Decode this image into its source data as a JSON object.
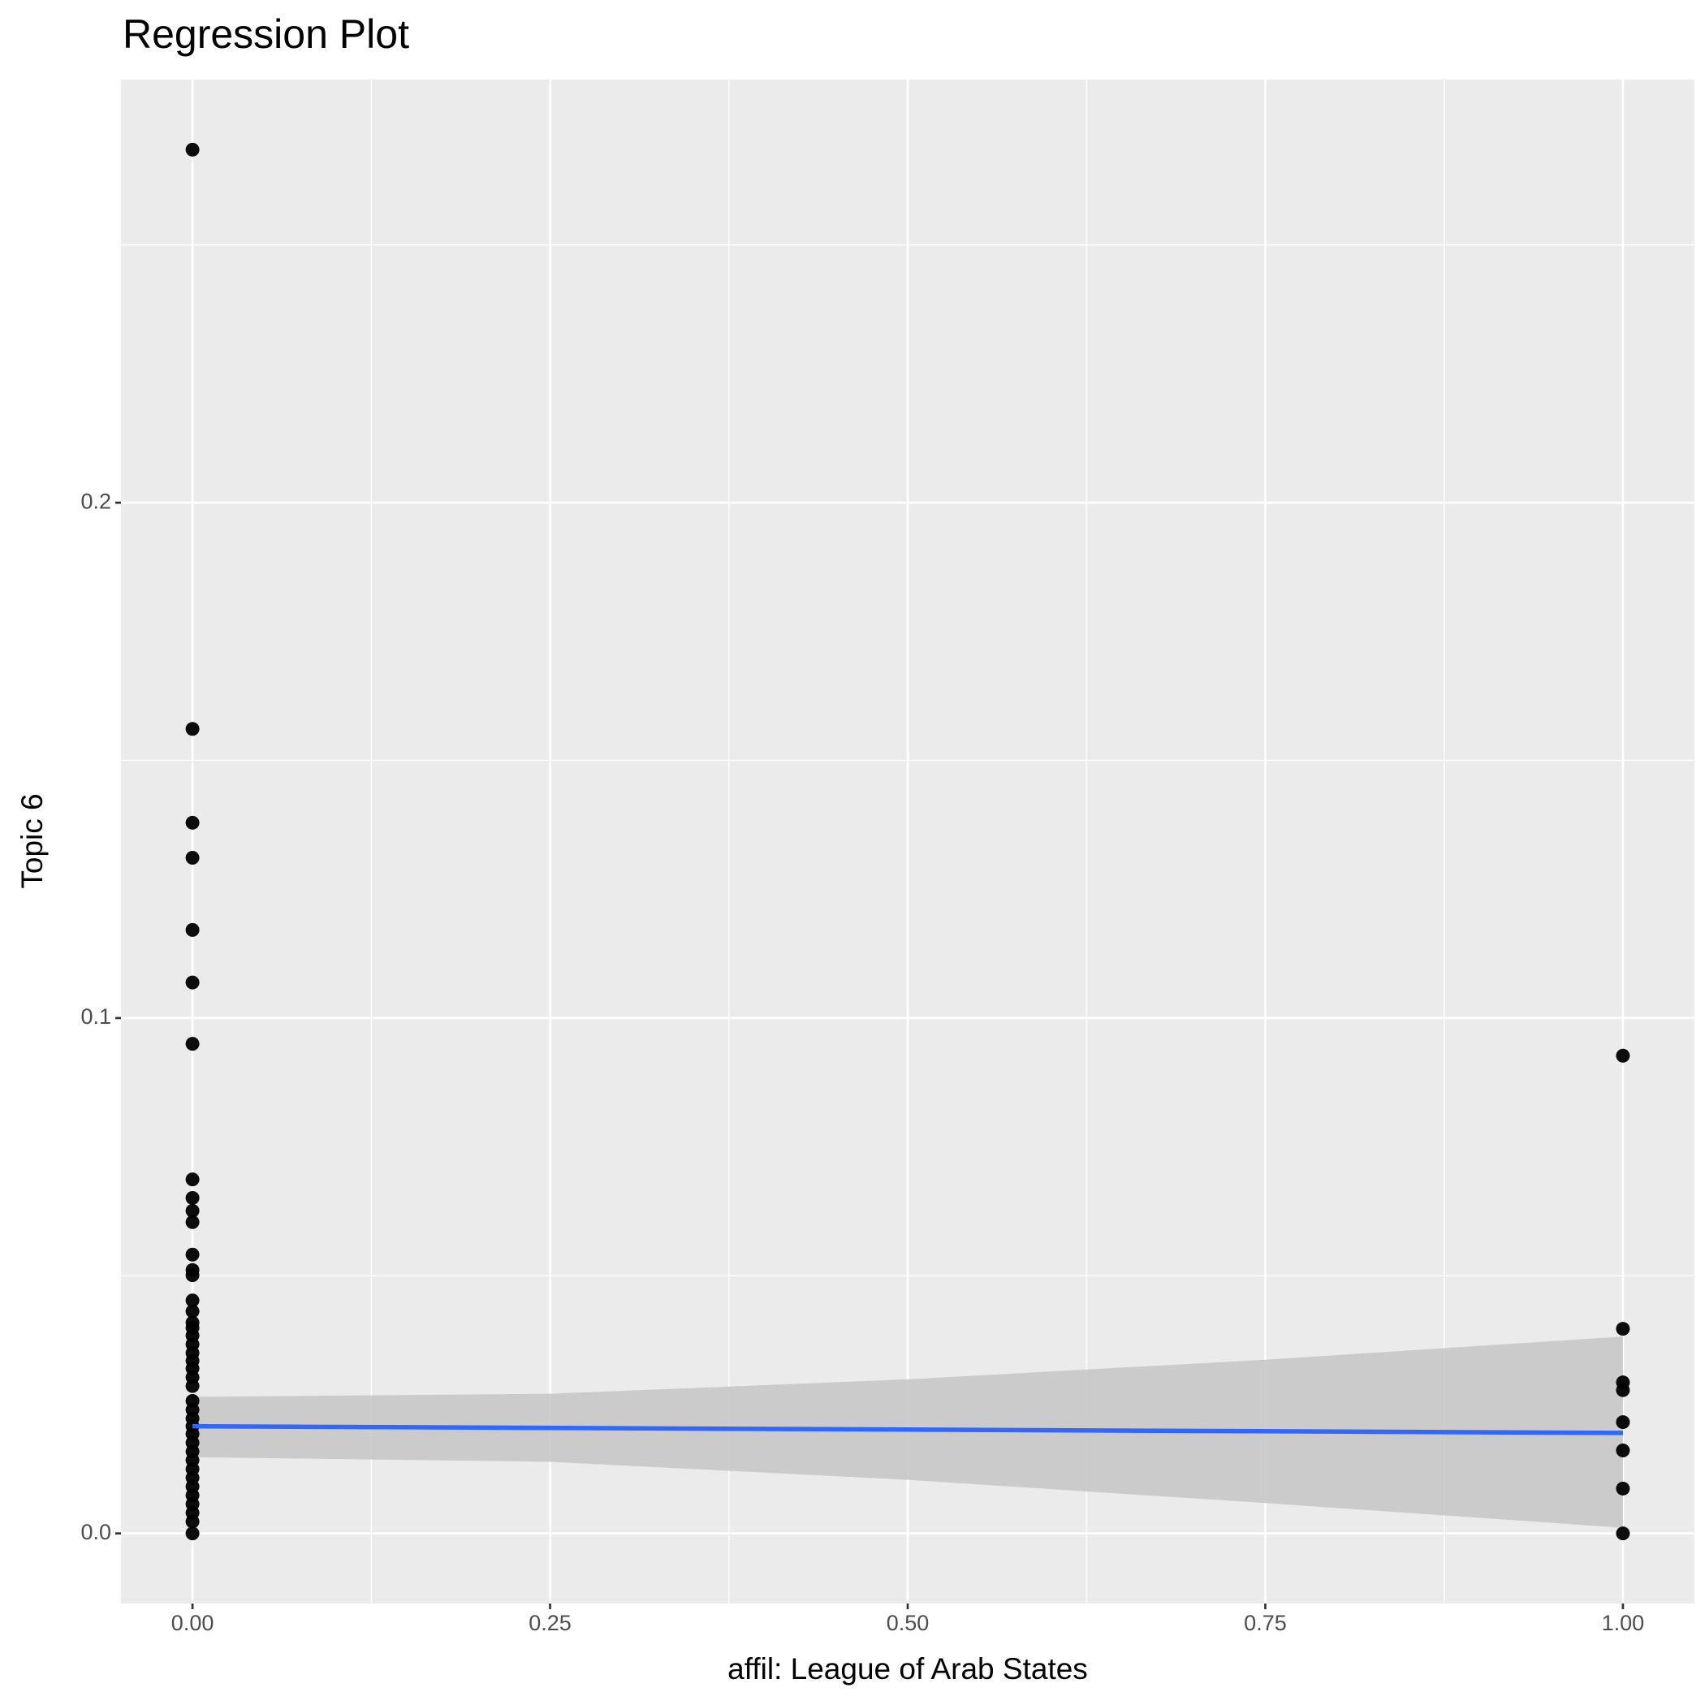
{
  "chart_data": {
    "type": "scatter",
    "title": "Regression Plot",
    "x_label": "affil: League of Arab States",
    "y_label": "Topic 6",
    "x": [
      0,
      0,
      0,
      0,
      0,
      0,
      0,
      0,
      0,
      0,
      0,
      0,
      0,
      0,
      0,
      0,
      0,
      0,
      0,
      0,
      0,
      0,
      0,
      0,
      0,
      0,
      0,
      0,
      0,
      0,
      0,
      0,
      0,
      0,
      0,
      0,
      0,
      0,
      0,
      0,
      0,
      1,
      1,
      1,
      1,
      1,
      1,
      1,
      1
    ],
    "y": [
      0.2685,
      0.1561,
      0.1379,
      0.1311,
      0.1171,
      0.1069,
      0.095,
      0.0687,
      0.0651,
      0.0626,
      0.0604,
      0.0541,
      0.0511,
      0.0501,
      0.0452,
      0.0431,
      0.0409,
      0.0399,
      0.0384,
      0.0367,
      0.035,
      0.0335,
      0.032,
      0.0303,
      0.0286,
      0.0257,
      0.024,
      0.0223,
      0.0208,
      0.0193,
      0.0176,
      0.0159,
      0.0142,
      0.0125,
      0.0108,
      0.0091,
      0.0074,
      0.0057,
      0.004,
      0.0023,
      0,
      0.0927,
      0.0397,
      0.0293,
      0.0278,
      0.0216,
      0.0161,
      0.0087,
      0
    ],
    "color": "#000000",
    "fit": {
      "x": [
        0,
        1
      ],
      "y": [
        0.0208,
        0.0195
      ],
      "color": "#3366ff"
    },
    "band": {
      "x": [
        0,
        0.25,
        0.5,
        0.75,
        1
      ],
      "lower": [
        0.0148,
        0.0139,
        0.0104,
        0.0059,
        0.0011
      ],
      "upper": [
        0.0265,
        0.0271,
        0.0299,
        0.0337,
        0.0382
      ],
      "color": "#c8c8c8"
    },
    "xlim": [
      -0.05,
      1.05
    ],
    "ylim": [
      -0.0136,
      0.2821
    ],
    "xticks": [
      {
        "value": 0,
        "label": "0.00"
      },
      {
        "value": 0.25,
        "label": "0.25"
      },
      {
        "value": 0.5,
        "label": "0.50"
      },
      {
        "value": 0.75,
        "label": "0.75"
      },
      {
        "value": 1,
        "label": "1.00"
      }
    ],
    "yticks": [
      {
        "value": 0,
        "label": "0.0"
      },
      0.1,
      0.2
    ],
    "x_minor_ticks": [
      0.125,
      0.375,
      0.625,
      0.875
    ],
    "y_minor_ticks": [
      0.05,
      0.15,
      0.25
    ],
    "grid": true
  }
}
